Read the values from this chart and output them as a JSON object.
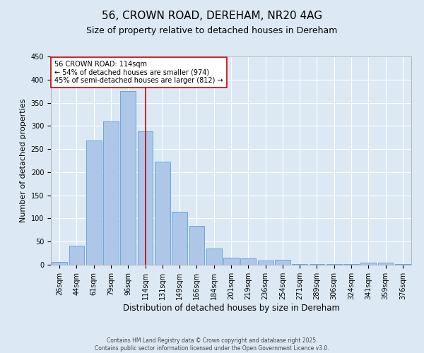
{
  "title": "56, CROWN ROAD, DEREHAM, NR20 4AG",
  "subtitle": "Size of property relative to detached houses in Dereham",
  "xlabel": "Distribution of detached houses by size in Dereham",
  "ylabel": "Number of detached properties",
  "categories": [
    "26sqm",
    "44sqm",
    "61sqm",
    "79sqm",
    "96sqm",
    "114sqm",
    "131sqm",
    "149sqm",
    "166sqm",
    "184sqm",
    "201sqm",
    "219sqm",
    "236sqm",
    "254sqm",
    "271sqm",
    "289sqm",
    "306sqm",
    "324sqm",
    "341sqm",
    "359sqm",
    "376sqm"
  ],
  "values": [
    6,
    41,
    268,
    310,
    375,
    289,
    223,
    115,
    84,
    35,
    15,
    13,
    9,
    10,
    1,
    1,
    1,
    1,
    5,
    5,
    2
  ],
  "bar_color": "#aec6e8",
  "bar_edge_color": "#5a9fd4",
  "highlight_index": 5,
  "highlight_line_color": "#cc0000",
  "annotation_text": "56 CROWN ROAD: 114sqm\n← 54% of detached houses are smaller (974)\n45% of semi-detached houses are larger (812) →",
  "annotation_box_color": "#ffffff",
  "annotation_box_edge": "#cc0000",
  "ylim": [
    0,
    450
  ],
  "yticks": [
    0,
    50,
    100,
    150,
    200,
    250,
    300,
    350,
    400,
    450
  ],
  "background_color": "#dce9f5",
  "plot_bg_color": "#dce9f5",
  "footer_line1": "Contains HM Land Registry data © Crown copyright and database right 2025.",
  "footer_line2": "Contains public sector information licensed under the Open Government Licence v3.0.",
  "title_fontsize": 11,
  "subtitle_fontsize": 9,
  "tick_fontsize": 7,
  "ylabel_fontsize": 8,
  "xlabel_fontsize": 8.5,
  "annotation_fontsize": 7,
  "footer_fontsize": 5.5
}
